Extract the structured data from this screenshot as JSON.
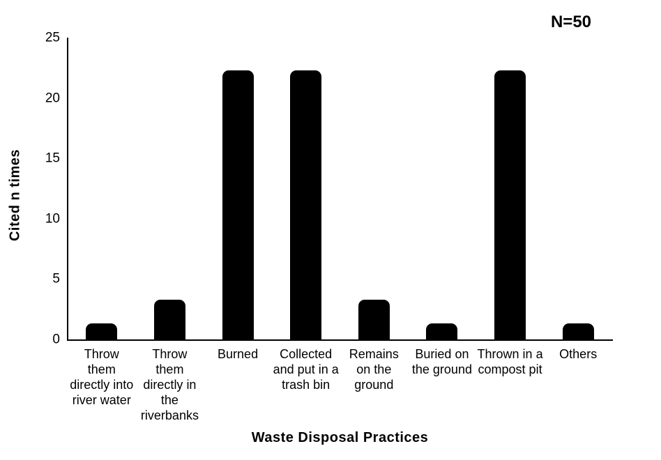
{
  "chart_data": {
    "type": "bar",
    "title": "",
    "annotation": "N=50",
    "xlabel": "Waste Disposal Practices",
    "ylabel": "Cited n times",
    "categories": [
      "Throw them directly into river water",
      "Throw them directly in the riverbanks",
      "Burned",
      "Collected and put in a trash bin",
      "Remains on the ground",
      "Buried on the ground",
      "Thrown in a compost pit",
      "Others"
    ],
    "categories_wrapped": [
      "Throw\nthem\ndirectly into\nriver water",
      "Throw\nthem\ndirectly in\nthe\nriverbanks",
      "Burned",
      "Collected\nand put in a\ntrash bin",
      "Remains\non the\nground",
      "Buried on\nthe ground",
      "Thrown in a\ncompost pit",
      "Others"
    ],
    "values": [
      1.3,
      3.3,
      22.3,
      22.3,
      3.3,
      1.3,
      22.3,
      1.3
    ],
    "yticks": [
      0,
      5,
      10,
      15,
      20,
      25
    ],
    "ylim": [
      0,
      25
    ],
    "bar_color": "#000000",
    "text_color": "#000000",
    "background": "#ffffff",
    "grid": false,
    "legend": "none"
  }
}
